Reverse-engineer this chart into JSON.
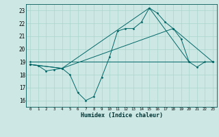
{
  "xlabel": "Humidex (Indice chaleur)",
  "xlim": [
    -0.5,
    23.5
  ],
  "ylim": [
    15.5,
    23.5
  ],
  "yticks": [
    16,
    17,
    18,
    19,
    20,
    21,
    22,
    23
  ],
  "xticks": [
    0,
    1,
    2,
    3,
    4,
    5,
    6,
    7,
    8,
    9,
    10,
    11,
    12,
    13,
    14,
    15,
    16,
    17,
    18,
    19,
    20,
    21,
    22,
    23
  ],
  "background_color": "#cde8e4",
  "grid_color": "#aad4ce",
  "line_color": "#006666",
  "lines": [
    {
      "x": [
        0,
        1,
        2,
        3,
        4,
        5,
        6,
        7,
        8,
        9,
        10,
        11,
        12,
        13,
        14,
        15,
        16,
        17,
        18,
        19,
        20,
        21,
        22,
        23
      ],
      "y": [
        18.8,
        18.7,
        18.3,
        18.4,
        18.5,
        18.0,
        16.6,
        16.0,
        16.3,
        17.8,
        19.4,
        21.4,
        21.6,
        21.6,
        22.1,
        23.2,
        22.8,
        22.1,
        21.6,
        20.8,
        19.0,
        18.6,
        19.0,
        19.0
      ]
    },
    {
      "x": [
        0,
        4,
        15,
        20
      ],
      "y": [
        18.8,
        18.5,
        23.2,
        19.0
      ]
    },
    {
      "x": [
        0,
        23
      ],
      "y": [
        19.0,
        19.0
      ]
    },
    {
      "x": [
        0,
        4,
        18,
        23
      ],
      "y": [
        18.8,
        18.5,
        21.6,
        19.0
      ]
    }
  ]
}
